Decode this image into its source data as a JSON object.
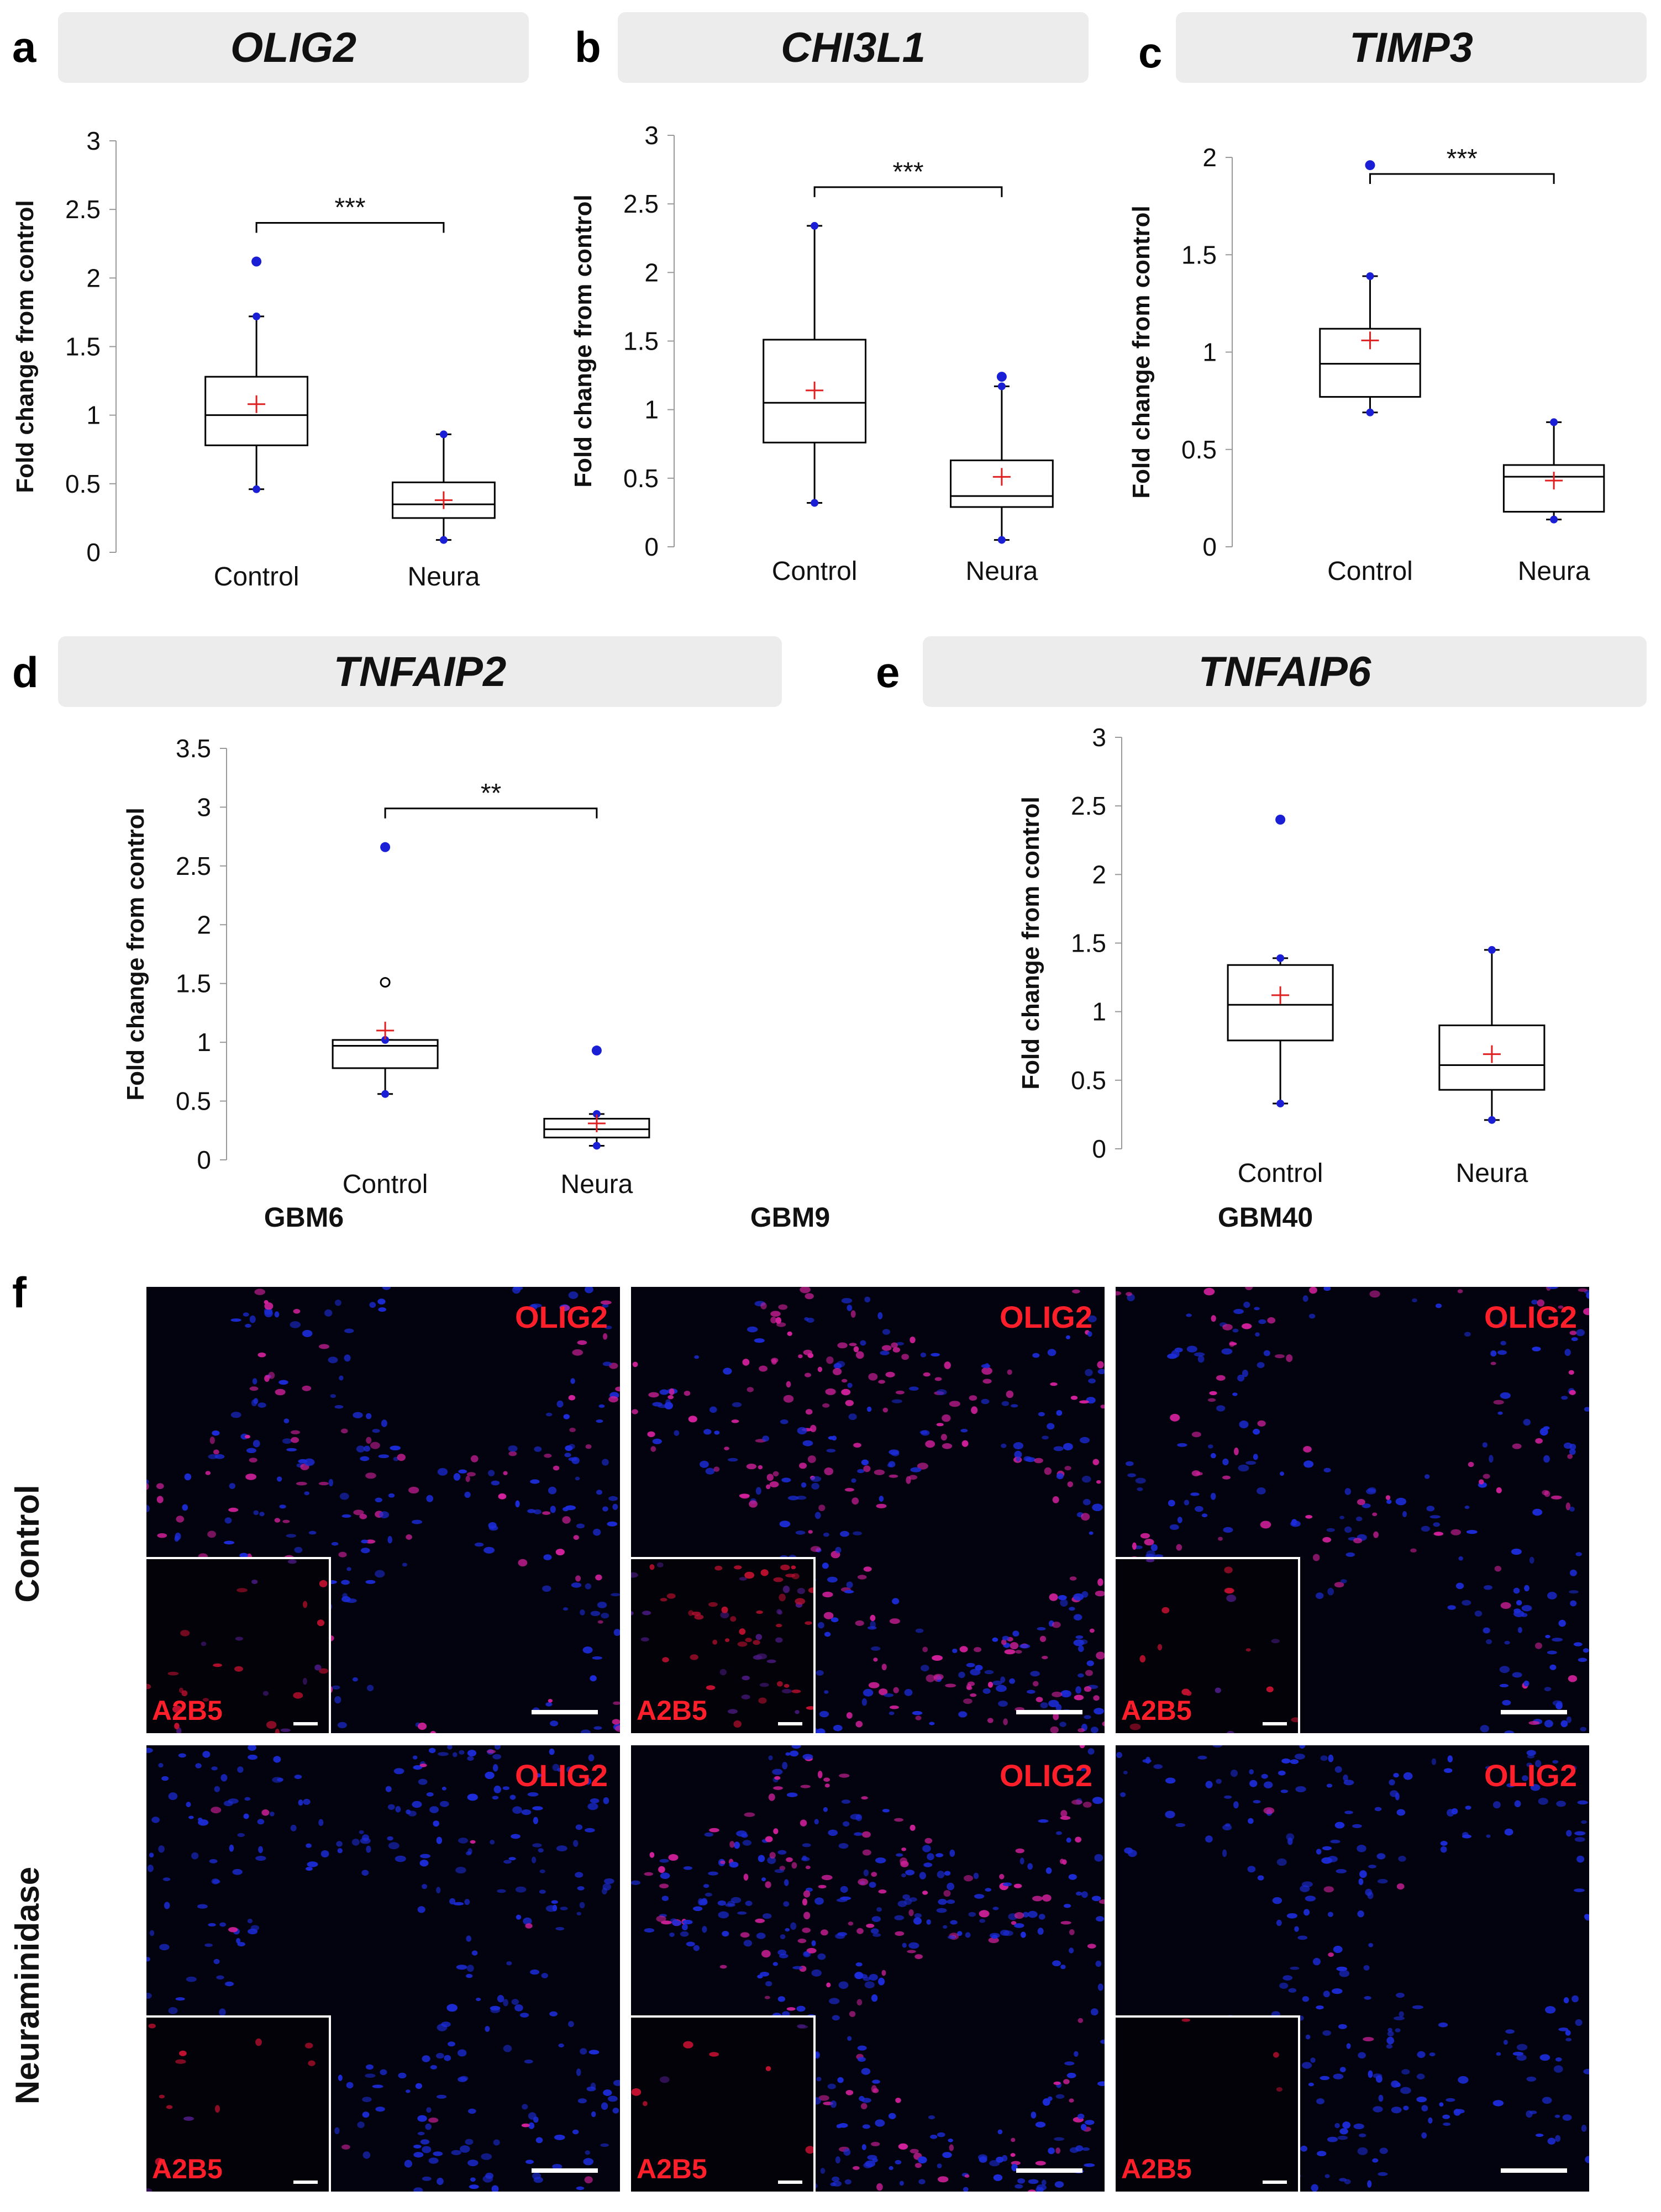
{
  "panels": [
    {
      "letter": "a",
      "gene": "OLIG2",
      "ylabel": "Fold change from control",
      "ylim": [
        0,
        3
      ],
      "ticks": [
        "0",
        "0.5",
        "1",
        "1.5",
        "2",
        "2.5",
        "3"
      ],
      "tickvals": [
        0,
        0.5,
        1,
        1.5,
        2,
        2.5,
        3
      ],
      "significance": "***",
      "groups": [
        {
          "name": "Control",
          "q1": 0.78,
          "median": 1.0,
          "q3": 1.28,
          "whisker_low": 0.46,
          "whisker_high": 1.72,
          "mean": 1.08,
          "outliers": [
            2.12
          ],
          "open_outliers": []
        },
        {
          "name": "Neura",
          "q1": 0.25,
          "median": 0.35,
          "q3": 0.51,
          "whisker_low": 0.09,
          "whisker_high": 0.86,
          "mean": 0.38,
          "outliers": [],
          "open_outliers": []
        }
      ]
    },
    {
      "letter": "b",
      "gene": "CHI3L1",
      "ylabel": "Fold change from control",
      "ylim": [
        0,
        3
      ],
      "ticks": [
        "0",
        "0.5",
        "1",
        "1.5",
        "2",
        "2.5",
        "3"
      ],
      "tickvals": [
        0,
        0.5,
        1,
        1.5,
        2,
        2.5,
        3
      ],
      "significance": "***",
      "groups": [
        {
          "name": "Control",
          "q1": 0.76,
          "median": 1.05,
          "q3": 1.51,
          "whisker_low": 0.32,
          "whisker_high": 2.34,
          "mean": 1.14,
          "outliers": [],
          "open_outliers": []
        },
        {
          "name": "Neura",
          "q1": 0.29,
          "median": 0.37,
          "q3": 0.63,
          "whisker_low": 0.05,
          "whisker_high": 1.17,
          "mean": 0.51,
          "outliers": [
            1.24
          ],
          "open_outliers": []
        }
      ]
    },
    {
      "letter": "c",
      "gene": "TIMP3",
      "ylabel": "Fold change from control",
      "ylim": [
        0,
        2
      ],
      "ticks": [
        "0",
        "0.5",
        "1",
        "1.5",
        "2"
      ],
      "tickvals": [
        0,
        0.5,
        1,
        1.5,
        2
      ],
      "significance": "***",
      "groups": [
        {
          "name": "Control",
          "q1": 0.77,
          "median": 0.94,
          "q3": 1.12,
          "whisker_low": 0.69,
          "whisker_high": 1.39,
          "mean": 1.06,
          "outliers": [
            1.96
          ],
          "open_outliers": []
        },
        {
          "name": "Neura",
          "q1": 0.18,
          "median": 0.36,
          "q3": 0.42,
          "whisker_low": 0.14,
          "whisker_high": 0.64,
          "mean": 0.34,
          "outliers": [],
          "open_outliers": []
        }
      ]
    },
    {
      "letter": "d",
      "gene": "TNFAIP2",
      "ylabel": "Fold change from control",
      "ylim": [
        0,
        3.5
      ],
      "ticks": [
        "0",
        "0.5",
        "1",
        "1.5",
        "2",
        "2.5",
        "3",
        "3.5"
      ],
      "tickvals": [
        0,
        0.5,
        1,
        1.5,
        2,
        2.5,
        3,
        3.5
      ],
      "significance": "**",
      "groups": [
        {
          "name": "Control",
          "q1": 0.78,
          "median": 0.97,
          "q3": 1.02,
          "whisker_low": 0.56,
          "whisker_high": 1.02,
          "mean": 1.1,
          "outliers": [
            2.66
          ],
          "open_outliers": [
            1.51
          ]
        },
        {
          "name": "Neura",
          "q1": 0.19,
          "median": 0.26,
          "q3": 0.35,
          "whisker_low": 0.12,
          "whisker_high": 0.39,
          "mean": 0.31,
          "outliers": [
            0.93
          ],
          "open_outliers": []
        }
      ]
    },
    {
      "letter": "e",
      "gene": "TNFAIP6",
      "ylabel": "Fold change from control",
      "ylim": [
        0,
        3
      ],
      "ticks": [
        "0",
        "0.5",
        "1",
        "1.5",
        "2",
        "2.5",
        "3"
      ],
      "tickvals": [
        0,
        0.5,
        1,
        1.5,
        2,
        2.5,
        3
      ],
      "significance": "",
      "groups": [
        {
          "name": "Control",
          "q1": 0.79,
          "median": 1.05,
          "q3": 1.34,
          "whisker_low": 0.33,
          "whisker_high": 1.39,
          "mean": 1.12,
          "outliers": [
            2.4
          ],
          "open_outliers": []
        },
        {
          "name": "Neura",
          "q1": 0.43,
          "median": 0.61,
          "q3": 0.9,
          "whisker_low": 0.21,
          "whisker_high": 1.45,
          "mean": 0.69,
          "outliers": [],
          "open_outliers": []
        }
      ]
    }
  ],
  "chart_data": [
    {
      "type": "box",
      "title": "OLIG2",
      "ylabel": "Fold change from control",
      "categories": [
        "Control",
        "Neura"
      ],
      "ylim": [
        0,
        3
      ],
      "significance": "***"
    },
    {
      "type": "box",
      "title": "CHI3L1",
      "ylabel": "Fold change from control",
      "categories": [
        "Control",
        "Neura"
      ],
      "ylim": [
        0,
        3
      ],
      "significance": "***"
    },
    {
      "type": "box",
      "title": "TIMP3",
      "ylabel": "Fold change from control",
      "categories": [
        "Control",
        "Neura"
      ],
      "ylim": [
        0,
        2
      ],
      "significance": "***"
    },
    {
      "type": "box",
      "title": "TNFAIP2",
      "ylabel": "Fold change from control",
      "categories": [
        "Control",
        "Neura"
      ],
      "ylim": [
        0,
        3.5
      ],
      "significance": "**"
    },
    {
      "type": "box",
      "title": "TNFAIP6",
      "ylabel": "Fold change from control",
      "categories": [
        "Control",
        "Neura"
      ],
      "ylim": [
        0,
        3
      ],
      "significance": ""
    }
  ],
  "figure_f": {
    "letter": "f",
    "columns": [
      "GBM6",
      "GBM9",
      "GBM40"
    ],
    "rows": [
      "Control",
      "Neuraminidase"
    ],
    "stain": "OLIG2",
    "inset_stain": "A2B5"
  },
  "colors": {
    "box_line": "#000000",
    "outlier": "#1a1fd6",
    "mean": "#e02020",
    "stain": "#ff1f2a"
  }
}
